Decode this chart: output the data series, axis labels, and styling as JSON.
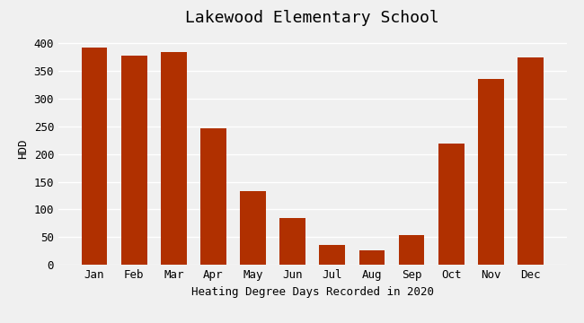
{
  "title": "Lakewood Elementary School",
  "xlabel": "Heating Degree Days Recorded in 2020",
  "ylabel": "HDD",
  "categories": [
    "Jan",
    "Feb",
    "Mar",
    "Apr",
    "May",
    "Jun",
    "Jul",
    "Aug",
    "Sep",
    "Oct",
    "Nov",
    "Dec"
  ],
  "values": [
    393,
    378,
    384,
    247,
    134,
    84,
    36,
    26,
    53,
    219,
    336,
    375
  ],
  "bar_color": "#b03000",
  "ylim": [
    0,
    420
  ],
  "yticks": [
    0,
    50,
    100,
    150,
    200,
    250,
    300,
    350,
    400
  ],
  "plot_bg_color": "#f0f0f0",
  "fig_bg_color": "#f0f0f0",
  "grid_color": "#ffffff",
  "title_fontsize": 13,
  "label_fontsize": 9,
  "tick_fontsize": 9
}
